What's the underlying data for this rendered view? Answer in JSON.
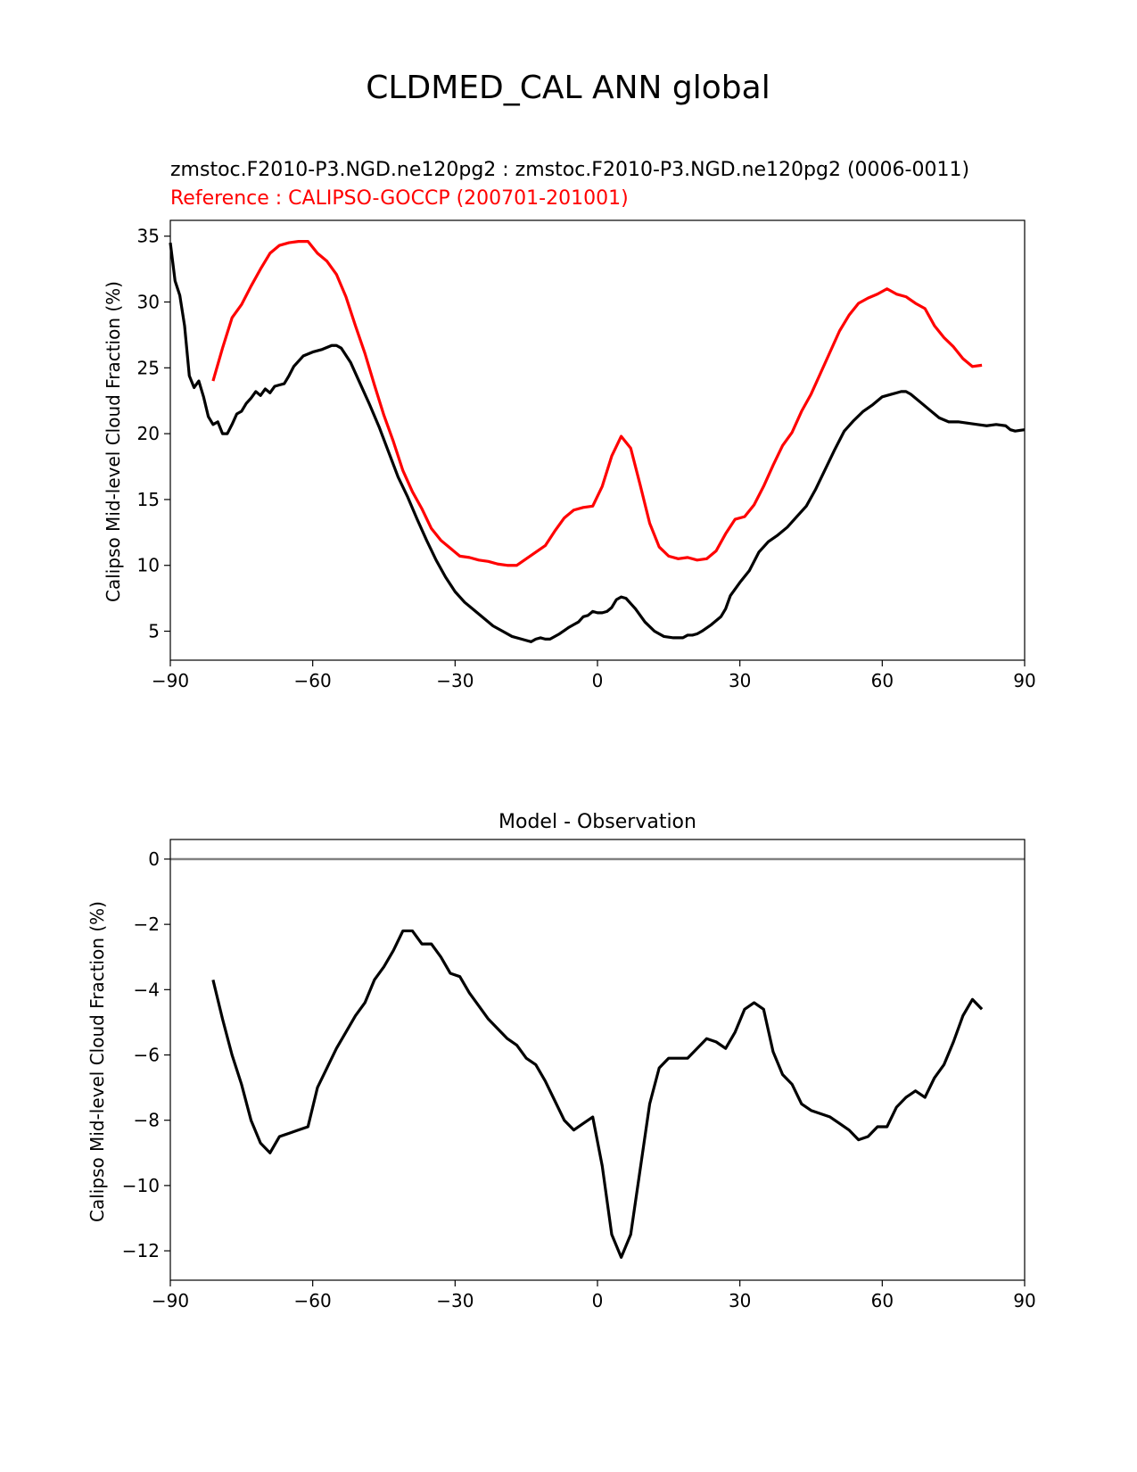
{
  "figure": {
    "title": "CLDMED_CAL ANN global"
  },
  "colors": {
    "model": "#000000",
    "reference": "#ff0000",
    "zero_line": "#808080"
  },
  "chart_data": [
    {
      "type": "line",
      "title_model": "zmstoc.F2010-P3.NGD.ne120pg2 : zmstoc.F2010-P3.NGD.ne120pg2 (0006-0011)",
      "title_reference": "Reference : CALIPSO-GOCCP (200701-201001)",
      "xlabel": "",
      "ylabel": "Calipso Mid-level Cloud Fraction (%)",
      "xlim": [
        -90,
        90
      ],
      "ylim": [
        2.8,
        36.2
      ],
      "xticks": [
        -90,
        -60,
        -30,
        0,
        30,
        60,
        90
      ],
      "yticks": [
        5,
        10,
        15,
        20,
        25,
        30,
        35
      ],
      "series": [
        {
          "color": "#000000",
          "x": [
            -90,
            -89,
            -88,
            -87,
            -86,
            -85,
            -84,
            -83,
            -82,
            -81,
            -80,
            -79,
            -78,
            -77,
            -76,
            -75,
            -74,
            -73,
            -72,
            -71,
            -70,
            -69,
            -68,
            -67,
            -66,
            -65,
            -64,
            -62,
            -60,
            -58,
            -56,
            -55,
            -54,
            -52,
            -50,
            -48,
            -46,
            -44,
            -42,
            -40,
            -38,
            -36,
            -34,
            -32,
            -30,
            -28,
            -26,
            -24,
            -22,
            -20,
            -18,
            -16,
            -15,
            -14,
            -13,
            -12,
            -11,
            -10,
            -8,
            -6,
            -5,
            -4,
            -3,
            -2,
            -1,
            0,
            1,
            2,
            3,
            4,
            5,
            6,
            7,
            8,
            10,
            12,
            14,
            16,
            18,
            19,
            20,
            21,
            22,
            24,
            26,
            27,
            28,
            30,
            32,
            34,
            36,
            38,
            40,
            42,
            44,
            46,
            48,
            50,
            52,
            54,
            56,
            58,
            60,
            62,
            63,
            64,
            65,
            66,
            68,
            70,
            72,
            74,
            76,
            78,
            80,
            82,
            84,
            86,
            87,
            88,
            90
          ],
          "y": [
            34.5,
            31.6,
            30.5,
            28.2,
            24.4,
            23.5,
            24,
            22.8,
            21.3,
            20.7,
            20.9,
            20,
            20,
            20.7,
            21.5,
            21.7,
            22.3,
            22.7,
            23.2,
            22.9,
            23.4,
            23.1,
            23.6,
            23.7,
            23.8,
            24.4,
            25.1,
            25.9,
            26.2,
            26.4,
            26.7,
            26.7,
            26.5,
            25.4,
            23.8,
            22.2,
            20.5,
            18.6,
            16.7,
            15.2,
            13.5,
            11.9,
            10.4,
            9.1,
            8,
            7.2,
            6.6,
            6,
            5.4,
            5,
            4.6,
            4.4,
            4.3,
            4.2,
            4.4,
            4.5,
            4.4,
            4.4,
            4.8,
            5.3,
            5.5,
            5.7,
            6.1,
            6.2,
            6.5,
            6.4,
            6.4,
            6.5,
            6.8,
            7.4,
            7.6,
            7.5,
            7.1,
            6.7,
            5.7,
            5,
            4.6,
            4.5,
            4.5,
            4.7,
            4.7,
            4.8,
            5,
            5.5,
            6.1,
            6.7,
            7.7,
            8.7,
            9.6,
            11,
            11.8,
            12.3,
            12.9,
            13.7,
            14.5,
            15.8,
            17.3,
            18.8,
            20.2,
            21,
            21.7,
            22.2,
            22.8,
            23,
            23.1,
            23.2,
            23.2,
            23,
            22.4,
            21.8,
            21.2,
            20.9,
            20.9,
            20.8,
            20.7,
            20.6,
            20.7,
            20.6,
            20.3,
            20.2,
            20.3
          ]
        },
        {
          "color": "#ff0000",
          "x": [
            -81,
            -79,
            -77,
            -75,
            -73,
            -71,
            -69,
            -67,
            -65,
            -63,
            -61,
            -59,
            -57,
            -55,
            -53,
            -51,
            -49,
            -47,
            -45,
            -43,
            -41,
            -39,
            -37,
            -35,
            -33,
            -31,
            -29,
            -27,
            -25,
            -23,
            -21,
            -19,
            -17,
            -15,
            -13,
            -11,
            -9,
            -7,
            -5,
            -3,
            -1,
            1,
            3,
            5,
            7,
            9,
            11,
            13,
            15,
            17,
            19,
            21,
            23,
            25,
            27,
            29,
            31,
            33,
            35,
            37,
            39,
            41,
            43,
            45,
            47,
            49,
            51,
            53,
            55,
            57,
            59,
            61,
            63,
            65,
            67,
            69,
            71,
            73,
            75,
            77,
            79,
            81
          ],
          "y": [
            24,
            26.5,
            28.8,
            29.8,
            31.2,
            32.5,
            33.7,
            34.3,
            34.5,
            34.6,
            34.6,
            33.7,
            33.1,
            32.1,
            30.4,
            28.2,
            26.1,
            23.7,
            21.4,
            19.4,
            17.2,
            15.6,
            14.3,
            12.8,
            11.9,
            11.3,
            10.7,
            10.6,
            10.4,
            10.3,
            10.1,
            10,
            10,
            10.5,
            11,
            11.5,
            12.6,
            13.6,
            14.2,
            14.4,
            14.5,
            16,
            18.3,
            19.8,
            18.9,
            16.1,
            13.2,
            11.4,
            10.7,
            10.5,
            10.6,
            10.4,
            10.5,
            11.1,
            12.4,
            13.5,
            13.7,
            14.6,
            16,
            17.6,
            19.1,
            20.1,
            21.7,
            23,
            24.6,
            26.2,
            27.8,
            29,
            29.9,
            30.3,
            30.6,
            31,
            30.6,
            30.4,
            29.9,
            29.5,
            28.2,
            27.3,
            26.6,
            25.7,
            25.1,
            25.2
          ]
        }
      ]
    },
    {
      "type": "line",
      "title": "Model - Observation",
      "xlabel": "",
      "ylabel": "Calipso Mid-level Cloud Fraction (%)",
      "xlim": [
        -90,
        90
      ],
      "ylim": [
        -12.9,
        0.6
      ],
      "xticks": [
        -90,
        -60,
        -30,
        0,
        30,
        60,
        90
      ],
      "yticks": [
        0,
        -2,
        -4,
        -6,
        -8,
        -10,
        -12
      ],
      "zero_line": 0,
      "series": [
        {
          "color": "#000000",
          "x": [
            -81,
            -79,
            -77,
            -75,
            -73,
            -71,
            -69,
            -67,
            -65,
            -63,
            -61,
            -59,
            -57,
            -55,
            -53,
            -51,
            -49,
            -47,
            -45,
            -43,
            -41,
            -39,
            -37,
            -35,
            -33,
            -31,
            -29,
            -27,
            -25,
            -23,
            -21,
            -19,
            -17,
            -15,
            -13,
            -11,
            -9,
            -7,
            -5,
            -3,
            -1,
            1,
            3,
            5,
            7,
            9,
            11,
            13,
            15,
            17,
            19,
            21,
            23,
            25,
            27,
            29,
            31,
            33,
            35,
            37,
            39,
            41,
            43,
            45,
            47,
            49,
            51,
            53,
            55,
            57,
            59,
            61,
            63,
            65,
            67,
            69,
            71,
            73,
            75,
            77,
            79,
            81
          ],
          "y": [
            -3.7,
            -4.9,
            -6,
            -6.9,
            -8,
            -8.7,
            -9,
            -8.5,
            -8.4,
            -8.3,
            -8.2,
            -7,
            -6.4,
            -5.8,
            -5.3,
            -4.8,
            -4.4,
            -3.7,
            -3.3,
            -2.8,
            -2.2,
            -2.2,
            -2.6,
            -2.6,
            -3,
            -3.5,
            -3.6,
            -4.1,
            -4.5,
            -4.9,
            -5.2,
            -5.5,
            -5.7,
            -6.1,
            -6.3,
            -6.8,
            -7.4,
            -8,
            -8.3,
            -8.1,
            -7.9,
            -9.4,
            -11.5,
            -12.2,
            -11.5,
            -9.5,
            -7.5,
            -6.4,
            -6.1,
            -6.1,
            -6.1,
            -5.8,
            -5.5,
            -5.6,
            -5.8,
            -5.3,
            -4.6,
            -4.4,
            -4.6,
            -5.9,
            -6.6,
            -6.9,
            -7.5,
            -7.7,
            -7.8,
            -7.9,
            -8.1,
            -8.3,
            -8.6,
            -8.5,
            -8.2,
            -8.2,
            -7.6,
            -7.3,
            -7.1,
            -7.3,
            -6.7,
            -6.3,
            -5.6,
            -4.8,
            -4.3,
            -4.6
          ]
        }
      ]
    }
  ]
}
